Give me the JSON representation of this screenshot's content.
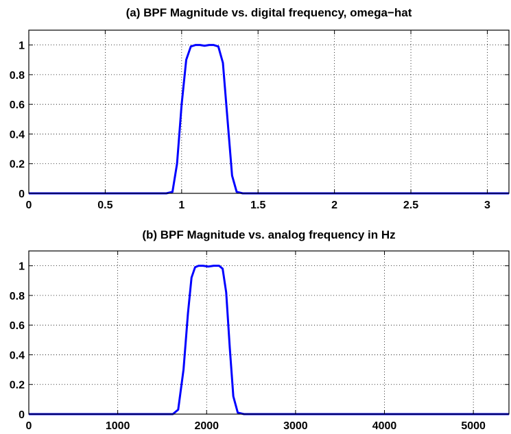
{
  "colors": {
    "series": "#0000ff",
    "grid": "#000000",
    "axes": "#000000",
    "background": "#ffffff"
  },
  "chart_data": [
    {
      "type": "line",
      "title": "(a) BPF Magnitude vs. digital frequency, omega−hat",
      "xlabel": "",
      "ylabel": "",
      "xlim": [
        0,
        3.14159
      ],
      "ylim": [
        0,
        1.1
      ],
      "grid": true,
      "xticks": [
        0,
        0.5,
        1,
        1.5,
        2,
        2.5,
        3
      ],
      "xtick_labels": [
        "0",
        "0.5",
        "1",
        "1.5",
        "2",
        "2.5",
        "3"
      ],
      "yticks": [
        0,
        0.2,
        0.4,
        0.6,
        0.8,
        1
      ],
      "ytick_labels": [
        "0",
        "0.2",
        "0.4",
        "0.6",
        "0.8",
        "1"
      ],
      "series": [
        {
          "x": [
            0,
            0.9,
            0.94,
            0.97,
            1.0,
            1.03,
            1.06,
            1.09,
            1.12,
            1.15,
            1.18,
            1.21,
            1.24,
            1.27,
            1.3,
            1.33,
            1.36,
            1.4,
            3.14159
          ],
          "y": [
            0,
            0,
            0.01,
            0.2,
            0.6,
            0.9,
            0.99,
            1.0,
            1.0,
            0.995,
            1.0,
            1.0,
            0.99,
            0.88,
            0.5,
            0.12,
            0.01,
            0,
            0
          ]
        }
      ]
    },
    {
      "type": "line",
      "title": "(b) BPF Magnitude vs. analog frequency in Hz",
      "xlabel": "",
      "ylabel": "",
      "xlim": [
        0,
        5400
      ],
      "ylim": [
        0,
        1.1
      ],
      "grid": true,
      "xticks": [
        0,
        1000,
        2000,
        3000,
        4000,
        5000
      ],
      "xtick_labels": [
        "0",
        "1000",
        "2000",
        "3000",
        "4000",
        "5000"
      ],
      "yticks": [
        0,
        0.2,
        0.4,
        0.6,
        0.8,
        1
      ],
      "ytick_labels": [
        "0",
        "0.2",
        "0.4",
        "0.6",
        "0.8",
        "1"
      ],
      "series": [
        {
          "x": [
            0,
            1620,
            1680,
            1740,
            1790,
            1830,
            1870,
            1910,
            1960,
            2020,
            2080,
            2140,
            2180,
            2220,
            2260,
            2300,
            2350,
            2420,
            5400
          ],
          "y": [
            0,
            0,
            0.03,
            0.3,
            0.68,
            0.92,
            0.99,
            1.0,
            1.0,
            0.995,
            1.0,
            1.0,
            0.98,
            0.82,
            0.45,
            0.12,
            0.01,
            0,
            0
          ]
        }
      ]
    }
  ]
}
